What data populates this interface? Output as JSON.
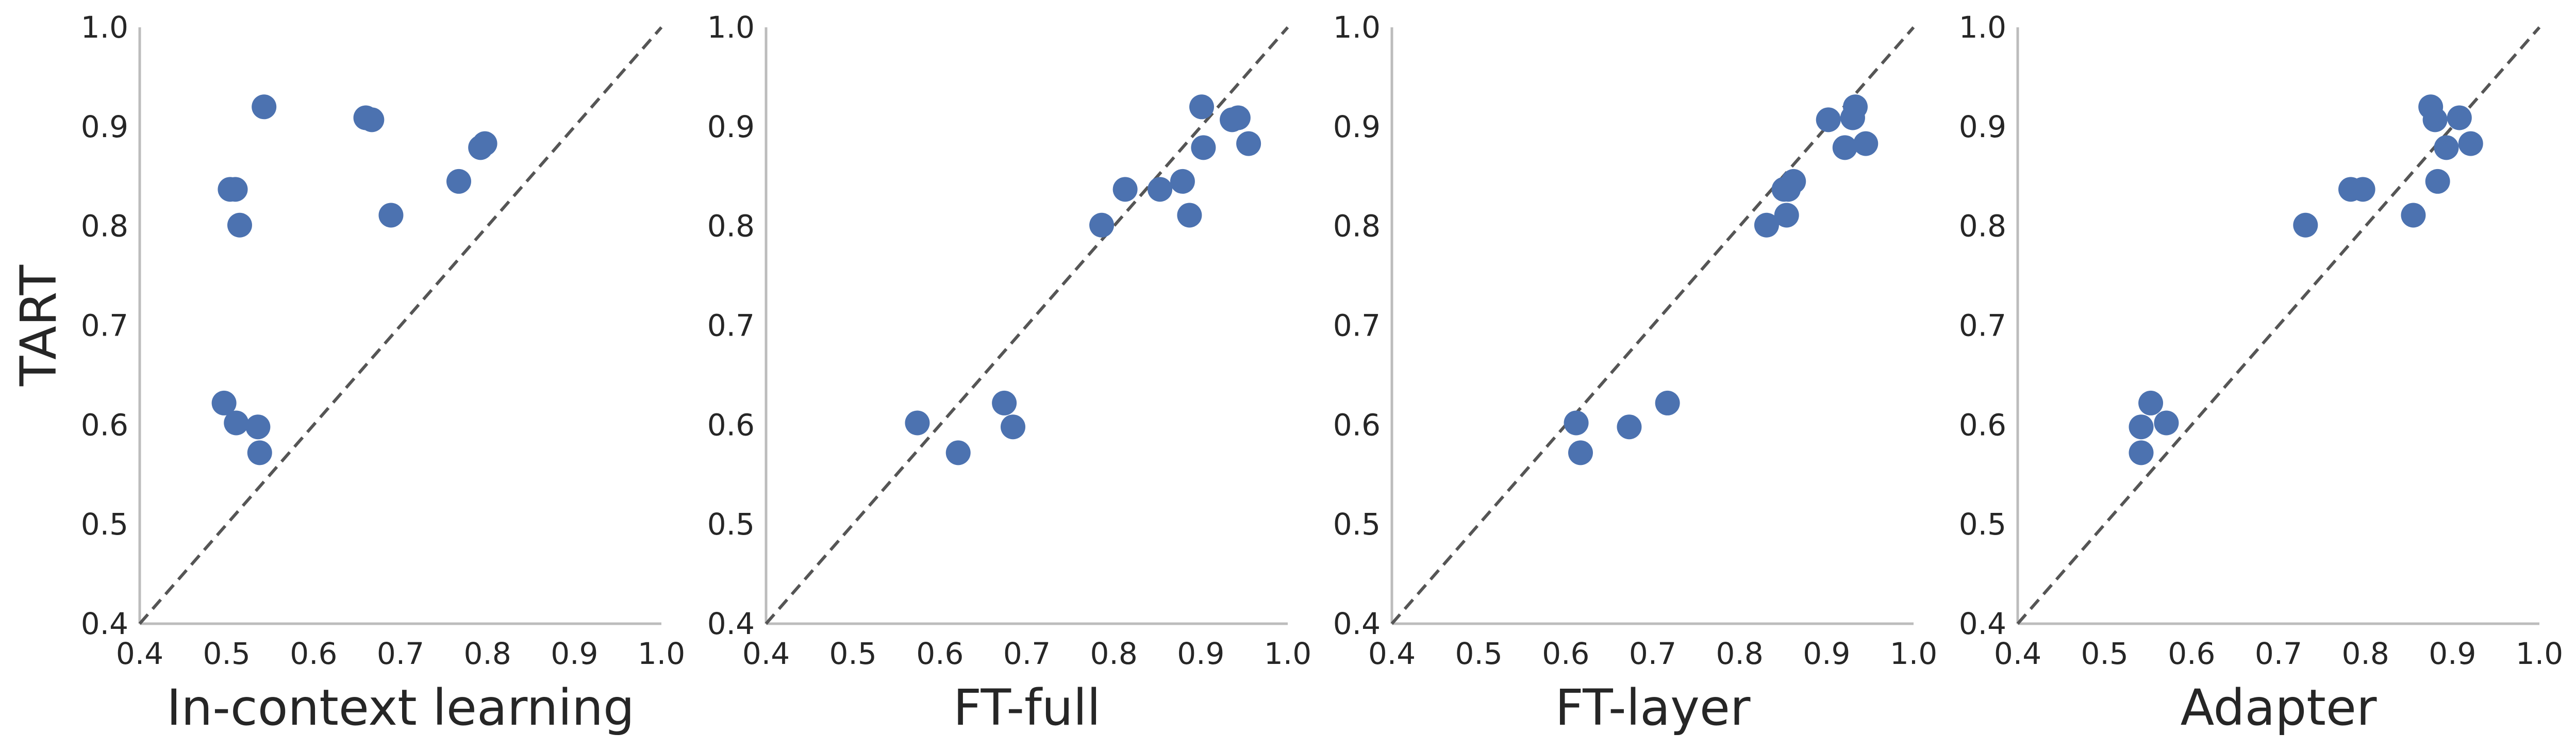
{
  "chart_data": [
    {
      "type": "scatter",
      "xlabel": "In-context learning",
      "ylabel": "TART",
      "xlim": [
        0.4,
        1.0
      ],
      "ylim": [
        0.4,
        1.0
      ],
      "xticks": [
        "0.4",
        "0.5",
        "0.6",
        "0.7",
        "0.8",
        "0.9",
        "1.0"
      ],
      "yticks": [
        "0.4",
        "0.5",
        "0.6",
        "0.7",
        "0.8",
        "0.9",
        "1.0"
      ],
      "grid": false,
      "reference_line": "y = x (dashed)",
      "points": [
        {
          "x": 0.497,
          "y": 0.622
        },
        {
          "x": 0.511,
          "y": 0.602
        },
        {
          "x": 0.536,
          "y": 0.598
        },
        {
          "x": 0.538,
          "y": 0.572
        },
        {
          "x": 0.504,
          "y": 0.837
        },
        {
          "x": 0.51,
          "y": 0.837
        },
        {
          "x": 0.515,
          "y": 0.801
        },
        {
          "x": 0.543,
          "y": 0.92
        },
        {
          "x": 0.66,
          "y": 0.909
        },
        {
          "x": 0.667,
          "y": 0.907
        },
        {
          "x": 0.689,
          "y": 0.811
        },
        {
          "x": 0.767,
          "y": 0.845
        },
        {
          "x": 0.792,
          "y": 0.879
        },
        {
          "x": 0.797,
          "y": 0.883
        }
      ]
    },
    {
      "type": "scatter",
      "xlabel": "FT-full",
      "ylabel": "",
      "xlim": [
        0.4,
        1.0
      ],
      "ylim": [
        0.4,
        1.0
      ],
      "xticks": [
        "0.4",
        "0.5",
        "0.6",
        "0.7",
        "0.8",
        "0.9",
        "1.0"
      ],
      "yticks": [
        "0.4",
        "0.5",
        "0.6",
        "0.7",
        "0.8",
        "0.9",
        "1.0"
      ],
      "grid": false,
      "reference_line": "y = x (dashed)",
      "points": [
        {
          "x": 0.574,
          "y": 0.602
        },
        {
          "x": 0.621,
          "y": 0.572
        },
        {
          "x": 0.674,
          "y": 0.622
        },
        {
          "x": 0.684,
          "y": 0.598
        },
        {
          "x": 0.786,
          "y": 0.801
        },
        {
          "x": 0.813,
          "y": 0.837
        },
        {
          "x": 0.853,
          "y": 0.837
        },
        {
          "x": 0.879,
          "y": 0.845
        },
        {
          "x": 0.887,
          "y": 0.811
        },
        {
          "x": 0.901,
          "y": 0.92
        },
        {
          "x": 0.903,
          "y": 0.879
        },
        {
          "x": 0.936,
          "y": 0.907
        },
        {
          "x": 0.943,
          "y": 0.909
        },
        {
          "x": 0.955,
          "y": 0.883
        }
      ]
    },
    {
      "type": "scatter",
      "xlabel": "FT-layer",
      "ylabel": "",
      "xlim": [
        0.4,
        1.0
      ],
      "ylim": [
        0.4,
        1.0
      ],
      "xticks": [
        "0.4",
        "0.5",
        "0.6",
        "0.7",
        "0.8",
        "0.9",
        "1.0"
      ],
      "yticks": [
        "0.4",
        "0.5",
        "0.6",
        "0.7",
        "0.8",
        "0.9",
        "1.0"
      ],
      "grid": false,
      "reference_line": "y = x (dashed)",
      "points": [
        {
          "x": 0.612,
          "y": 0.602
        },
        {
          "x": 0.617,
          "y": 0.572
        },
        {
          "x": 0.673,
          "y": 0.598
        },
        {
          "x": 0.717,
          "y": 0.622
        },
        {
          "x": 0.831,
          "y": 0.801
        },
        {
          "x": 0.851,
          "y": 0.837
        },
        {
          "x": 0.854,
          "y": 0.811
        },
        {
          "x": 0.856,
          "y": 0.837
        },
        {
          "x": 0.862,
          "y": 0.845
        },
        {
          "x": 0.902,
          "y": 0.907
        },
        {
          "x": 0.921,
          "y": 0.879
        },
        {
          "x": 0.93,
          "y": 0.909
        },
        {
          "x": 0.933,
          "y": 0.92
        },
        {
          "x": 0.945,
          "y": 0.883
        }
      ]
    },
    {
      "type": "scatter",
      "xlabel": "Adapter",
      "ylabel": "",
      "xlim": [
        0.4,
        1.0
      ],
      "ylim": [
        0.4,
        1.0
      ],
      "xticks": [
        "0.4",
        "0.5",
        "0.6",
        "0.7",
        "0.8",
        "0.9",
        "1.0"
      ],
      "yticks": [
        "0.4",
        "0.5",
        "0.6",
        "0.7",
        "0.8",
        "0.9",
        "1.0"
      ],
      "grid": false,
      "reference_line": "y = x (dashed)",
      "points": [
        {
          "x": 0.542,
          "y": 0.598
        },
        {
          "x": 0.542,
          "y": 0.572
        },
        {
          "x": 0.553,
          "y": 0.622
        },
        {
          "x": 0.571,
          "y": 0.602
        },
        {
          "x": 0.731,
          "y": 0.801
        },
        {
          "x": 0.783,
          "y": 0.837
        },
        {
          "x": 0.797,
          "y": 0.837
        },
        {
          "x": 0.855,
          "y": 0.811
        },
        {
          "x": 0.875,
          "y": 0.92
        },
        {
          "x": 0.88,
          "y": 0.907
        },
        {
          "x": 0.883,
          "y": 0.845
        },
        {
          "x": 0.893,
          "y": 0.879
        },
        {
          "x": 0.908,
          "y": 0.909
        },
        {
          "x": 0.921,
          "y": 0.883
        }
      ]
    }
  ],
  "style": {
    "point_color": "#4c72b0",
    "axis_color": "#bcbcbc",
    "reference_line_color": "#555555",
    "text_color": "#262626"
  }
}
